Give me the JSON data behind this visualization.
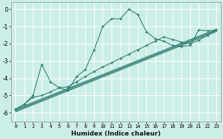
{
  "xlabel": "Humidex (Indice chaleur)",
  "bg_color": "#cceee8",
  "grid_color": "#ffffff",
  "line_color": "#2e7d6e",
  "xlim": [
    -0.5,
    23.5
  ],
  "ylim": [
    -6.5,
    0.4
  ],
  "xticks": [
    0,
    1,
    2,
    3,
    4,
    5,
    6,
    7,
    8,
    9,
    10,
    11,
    12,
    13,
    14,
    15,
    16,
    17,
    18,
    19,
    20,
    21,
    22,
    23
  ],
  "yticks": [
    0,
    -1,
    -2,
    -3,
    -4,
    -5,
    -6
  ],
  "series1": [
    [
      0,
      -5.8
    ],
    [
      1,
      -5.5
    ],
    [
      2,
      -5.0
    ],
    [
      3,
      -3.2
    ],
    [
      4,
      -4.2
    ],
    [
      5,
      -4.55
    ],
    [
      6,
      -4.7
    ],
    [
      7,
      -3.9
    ],
    [
      8,
      -3.5
    ],
    [
      9,
      -2.35
    ],
    [
      10,
      -1.0
    ],
    [
      11,
      -0.55
    ],
    [
      12,
      -0.55
    ],
    [
      13,
      0.0
    ],
    [
      14,
      -0.3
    ],
    [
      15,
      -1.3
    ],
    [
      16,
      -1.7
    ],
    [
      17,
      -1.85
    ],
    [
      18,
      -2.1
    ],
    [
      19,
      -2.15
    ],
    [
      20,
      -2.1
    ],
    [
      21,
      -1.2
    ],
    [
      22,
      -1.25
    ],
    [
      23,
      -1.2
    ]
  ],
  "series2": [
    [
      0,
      -5.8
    ],
    [
      1,
      -5.5
    ],
    [
      2,
      -5.1
    ],
    [
      3,
      -5.0
    ],
    [
      4,
      -4.8
    ],
    [
      5,
      -4.55
    ],
    [
      6,
      -4.5
    ],
    [
      7,
      -4.2
    ],
    [
      8,
      -3.9
    ],
    [
      9,
      -3.6
    ],
    [
      10,
      -3.35
    ],
    [
      11,
      -3.1
    ],
    [
      12,
      -2.85
    ],
    [
      13,
      -2.6
    ],
    [
      14,
      -2.35
    ],
    [
      15,
      -2.1
    ],
    [
      16,
      -1.85
    ],
    [
      17,
      -1.6
    ],
    [
      18,
      -1.75
    ],
    [
      19,
      -1.9
    ],
    [
      20,
      -2.0
    ],
    [
      21,
      -1.8
    ],
    [
      22,
      -1.5
    ],
    [
      23,
      -1.2
    ]
  ],
  "diag_lines": [
    [
      [
        0,
        -5.8
      ],
      [
        23,
        -1.15
      ]
    ],
    [
      [
        0,
        -5.85
      ],
      [
        23,
        -1.2
      ]
    ],
    [
      [
        0,
        -5.9
      ],
      [
        23,
        -1.25
      ]
    ],
    [
      [
        0,
        -5.95
      ],
      [
        23,
        -1.3
      ]
    ]
  ]
}
